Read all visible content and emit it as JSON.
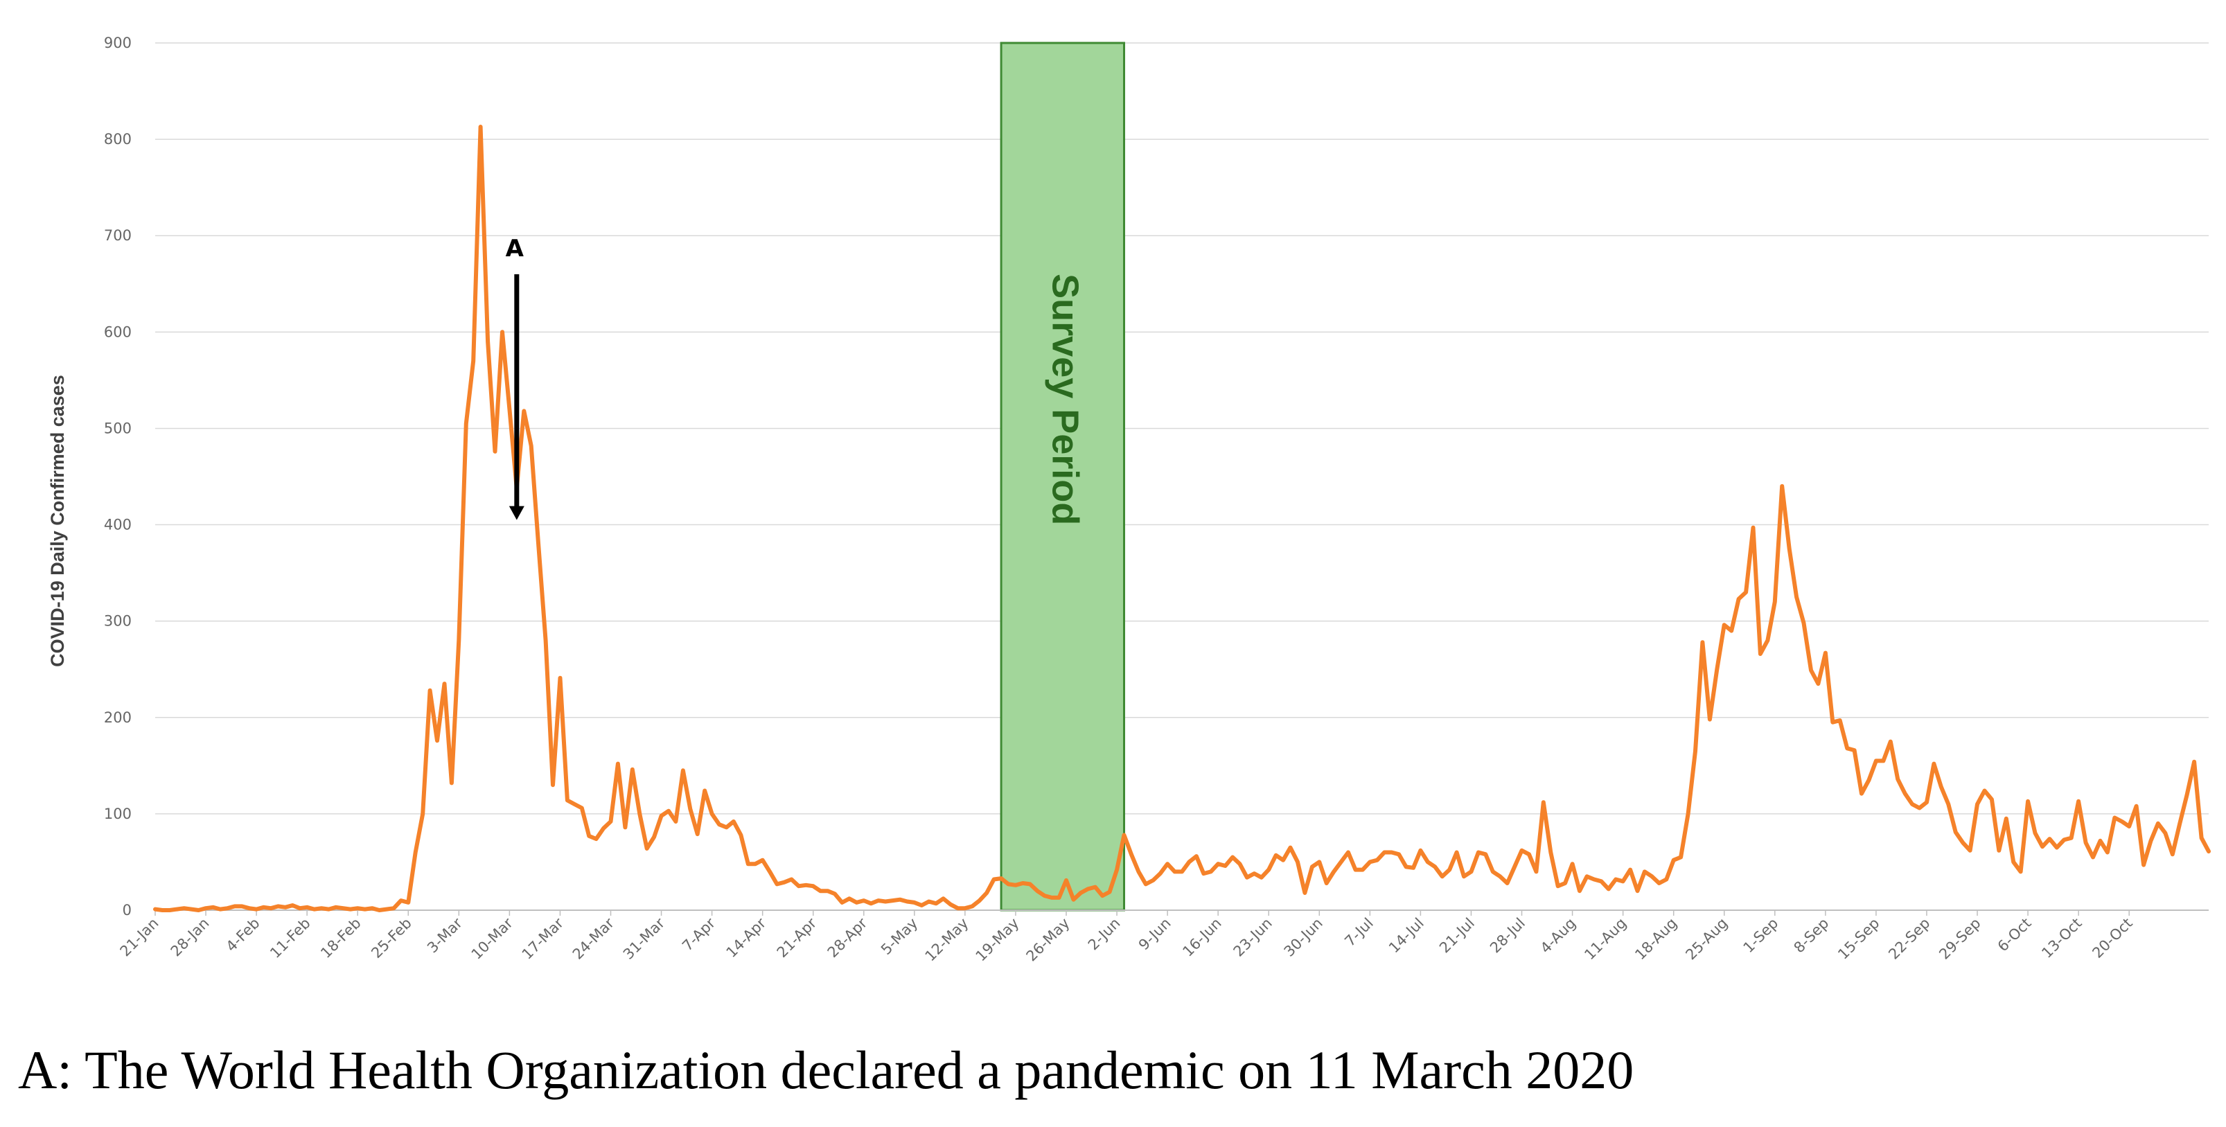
{
  "chart_data": {
    "type": "line",
    "title": "",
    "xlabel": "",
    "ylabel": "COVID-19 Daily Confirmed cases",
    "ylim": [
      0,
      900
    ],
    "y_ticks": [
      "0",
      "100",
      "200",
      "300",
      "400",
      "500",
      "600",
      "700",
      "800",
      "900"
    ],
    "grid": true,
    "x_start": "21-Jan",
    "x_tick_labels": [
      "21-Jan",
      "28-Jan",
      "4-Feb",
      "11-Feb",
      "18-Feb",
      "25-Feb",
      "3-Mar",
      "10-Mar",
      "17-Mar",
      "24-Mar",
      "31-Mar",
      "7-Apr",
      "14-Apr",
      "21-Apr",
      "28-Apr",
      "5-May",
      "12-May",
      "19-May",
      "26-May",
      "2-Jun",
      "9-Jun",
      "16-Jun",
      "23-Jun",
      "30-Jun",
      "7-Jul",
      "14-Jul",
      "21-Jul",
      "28-Jul",
      "4-Aug",
      "11-Aug",
      "18-Aug",
      "25-Aug",
      "1-Sep",
      "8-Sep",
      "15-Sep",
      "22-Sep",
      "29-Sep",
      "6-Oct",
      "13-Oct",
      "20-Oct"
    ],
    "series": [
      {
        "color": "#f5822a",
        "values": [
          1,
          0,
          0,
          1,
          2,
          1,
          0,
          2,
          3,
          1,
          2,
          4,
          4,
          2,
          1,
          3,
          2,
          4,
          3,
          5,
          2,
          3,
          1,
          2,
          1,
          3,
          2,
          1,
          2,
          1,
          2,
          0,
          1,
          2,
          10,
          8,
          60,
          100,
          228,
          176,
          235,
          132,
          280,
          505,
          570,
          813,
          590,
          476,
          600,
          520,
          438,
          518,
          482,
          380,
          280,
          130,
          241,
          114,
          110,
          106,
          77,
          74,
          85,
          92,
          152,
          86,
          146,
          100,
          64,
          76,
          98,
          103,
          92,
          145,
          105,
          79,
          124,
          100,
          89,
          86,
          92,
          78,
          48,
          48,
          52,
          40,
          27,
          29,
          32,
          25,
          26,
          25,
          20,
          20,
          17,
          8,
          12,
          8,
          10,
          7,
          10,
          9,
          10,
          11,
          9,
          8,
          5,
          9,
          7,
          12,
          6,
          2,
          2,
          4,
          10,
          18,
          32,
          33,
          27,
          26,
          28,
          27,
          20,
          15,
          13,
          13,
          31,
          11,
          18,
          22,
          24,
          15,
          19,
          42,
          78,
          58,
          40,
          27,
          31,
          38,
          48,
          40,
          40,
          50,
          56,
          38,
          40,
          48,
          46,
          55,
          48,
          34,
          38,
          34,
          42,
          57,
          52,
          65,
          50,
          18,
          45,
          50,
          28,
          40,
          50,
          60,
          42,
          42,
          50,
          52,
          60,
          60,
          58,
          45,
          44,
          62,
          50,
          45,
          35,
          42,
          60,
          35,
          40,
          60,
          58,
          40,
          35,
          28,
          45,
          62,
          58,
          40,
          112,
          60,
          25,
          28,
          48,
          20,
          35,
          32,
          30,
          22,
          32,
          30,
          42,
          20,
          40,
          35,
          28,
          32,
          52,
          55,
          100,
          165,
          278,
          198,
          250,
          296,
          290,
          323,
          330,
          397,
          266,
          280,
          320,
          440,
          375,
          325,
          298,
          249,
          235,
          267,
          195,
          197,
          168,
          166,
          121,
          135,
          155,
          155,
          175,
          136,
          121,
          110,
          106,
          112,
          152,
          128,
          110,
          81,
          70,
          62,
          110,
          124,
          115,
          62,
          95,
          50,
          40,
          113,
          80,
          66,
          74,
          65,
          73,
          75,
          113,
          70,
          55,
          72,
          60,
          96,
          92,
          87,
          108,
          47,
          72,
          90,
          80,
          58,
          90,
          120,
          154,
          75,
          61
        ]
      }
    ],
    "annotations": [
      {
        "label": "A",
        "x": "11-Mar",
        "y_from": 660,
        "y_to": 405
      }
    ],
    "shaded_period": {
      "label": "Survey Period",
      "x_from": "17-May",
      "x_to": "3-Jun",
      "color": "#a2d69a",
      "border": "#3f8a33"
    }
  },
  "caption": "A: The World Health Organization declared a pandemic on 11 March 2020"
}
